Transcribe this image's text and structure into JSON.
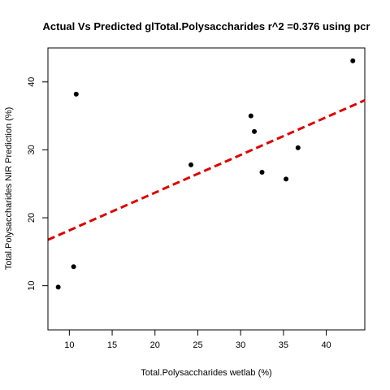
{
  "chart_data": {
    "type": "scatter",
    "title": "Actual Vs Predicted glTotal.Polysaccharides r^2 =0.376 using pcr",
    "xlabel": "Total.Polysaccharides wetlab (%)",
    "ylabel": "Total.Polysaccharides NIR Prediction (%)",
    "xlim": [
      7.5,
      44.5
    ],
    "ylim": [
      3.5,
      45.0
    ],
    "x_ticks": [
      10,
      15,
      20,
      25,
      30,
      35,
      40
    ],
    "y_ticks": [
      10,
      20,
      30,
      40
    ],
    "grid": false,
    "legend": "none",
    "points": [
      {
        "x": 8.7,
        "y": 9.8
      },
      {
        "x": 10.5,
        "y": 12.8
      },
      {
        "x": 10.8,
        "y": 38.2
      },
      {
        "x": 24.2,
        "y": 27.8
      },
      {
        "x": 31.2,
        "y": 35.0
      },
      {
        "x": 31.6,
        "y": 32.7
      },
      {
        "x": 32.5,
        "y": 26.7
      },
      {
        "x": 35.3,
        "y": 25.7
      },
      {
        "x": 36.7,
        "y": 30.3
      },
      {
        "x": 43.1,
        "y": 43.1
      }
    ],
    "fit_line": {
      "style": "dashed",
      "color": "#dd0000",
      "intercept": 12.6,
      "slope": 0.555
    },
    "point_color": "#000000"
  }
}
